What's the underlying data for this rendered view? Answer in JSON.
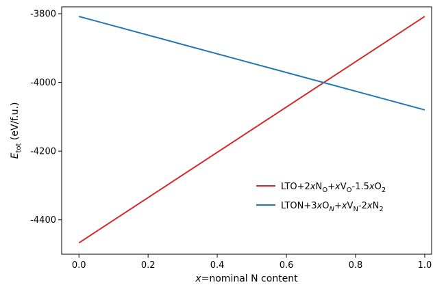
{
  "chart_data": {
    "type": "line",
    "xlabel": {
      "prefix_italic": "x",
      "rest": "=nominal N content"
    },
    "ylabel": {
      "base_italic": "E",
      "subscript": "tot",
      "rest": " (eV/f.u.)"
    },
    "xlim": [
      -0.05,
      1.02
    ],
    "ylim": [
      -4500,
      -3780
    ],
    "xticks": [
      0.0,
      0.2,
      0.4,
      0.6,
      0.8,
      1.0
    ],
    "xtick_labels": [
      "0.0",
      "0.2",
      "0.4",
      "0.6",
      "0.8",
      "1.0"
    ],
    "yticks": [
      -3800,
      -4000,
      -4200,
      -4400
    ],
    "ytick_labels": [
      "-3800",
      "-4000",
      "-4200",
      "-4400"
    ],
    "grid": false,
    "legend_position": "lower-right",
    "series": [
      {
        "legend": [
          {
            "t": "LTO+2"
          },
          {
            "t": "x",
            "i": true
          },
          {
            "t": "N"
          },
          {
            "t": "O",
            "sub": true
          },
          {
            "t": "+"
          },
          {
            "t": "x",
            "i": true
          },
          {
            "t": "V"
          },
          {
            "t": "O",
            "sub": true
          },
          {
            "t": "-1.5"
          },
          {
            "t": "x",
            "i": true
          },
          {
            "t": "O"
          },
          {
            "t": "2",
            "sub": true
          }
        ],
        "color": "#d62728",
        "x": [
          0.0,
          1.0
        ],
        "y": [
          -4467,
          -3808
        ]
      },
      {
        "legend": [
          {
            "t": "LTON+3"
          },
          {
            "t": "x",
            "i": true
          },
          {
            "t": "O"
          },
          {
            "t": "N",
            "sub": true,
            "i": true
          },
          {
            "t": "+"
          },
          {
            "t": "x",
            "i": true
          },
          {
            "t": "V"
          },
          {
            "t": "N",
            "sub": true
          },
          {
            "t": "-2"
          },
          {
            "t": "x",
            "i": true
          },
          {
            "t": "N"
          },
          {
            "t": "2",
            "sub": true
          }
        ],
        "color": "#1f77b4",
        "x": [
          0.0,
          1.0
        ],
        "y": [
          -3808,
          -4080
        ]
      }
    ]
  }
}
